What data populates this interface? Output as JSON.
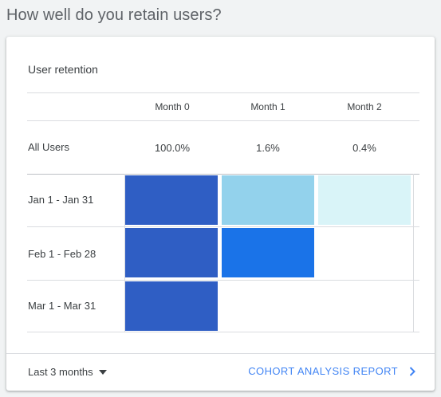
{
  "page": {
    "heading": "How well do you retain users?"
  },
  "card": {
    "title": "User retention",
    "columns": [
      "Month 0",
      "Month 1",
      "Month 2"
    ],
    "all_users": {
      "label": "All Users",
      "values": [
        "100.0%",
        "1.6%",
        "0.4%"
      ]
    },
    "cohorts": [
      {
        "label": "Jan 1 - Jan 31",
        "cells": [
          {
            "color": "#2f5ec4"
          },
          {
            "color": "#93d2ec"
          },
          {
            "color": "#d9f4f8"
          }
        ]
      },
      {
        "label": "Feb 1 - Feb 28",
        "cells": [
          {
            "color": "#2f5ec4"
          },
          {
            "color": "#1a73e8"
          }
        ]
      },
      {
        "label": "Mar 1 - Mar 31",
        "cells": [
          {
            "color": "#2f5ec4"
          }
        ]
      }
    ]
  },
  "footer": {
    "date_range": "Last 3 months",
    "report_link": "COHORT ANALYSIS REPORT"
  },
  "icons": {
    "date_range": "caret-down-icon",
    "report_link": "chevron-right-icon"
  },
  "colors": {
    "link": "#4285f4"
  }
}
